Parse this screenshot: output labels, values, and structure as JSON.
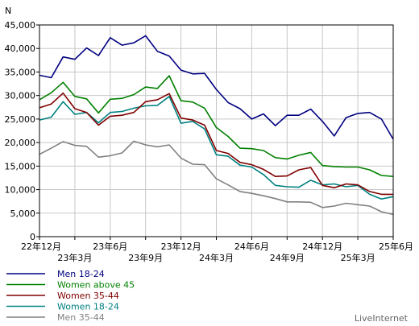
{
  "chart_data": {
    "type": "line",
    "ylabel": "N",
    "ylim": [
      0,
      45000
    ],
    "y_ticks": [
      "0",
      "5,000",
      "10,000",
      "15,000",
      "20,000",
      "25,000",
      "30,000",
      "35,000",
      "40,000",
      "45,000"
    ],
    "x_ticks": [
      {
        "label": "22年12月",
        "index": 0,
        "row": 1
      },
      {
        "label": "23年3月",
        "index": 3,
        "row": 2
      },
      {
        "label": "23年6月",
        "index": 6,
        "row": 1
      },
      {
        "label": "23年9月",
        "index": 9,
        "row": 2
      },
      {
        "label": "23年12月",
        "index": 12,
        "row": 1
      },
      {
        "label": "24年3月",
        "index": 15,
        "row": 2
      },
      {
        "label": "24年6月",
        "index": 18,
        "row": 1
      },
      {
        "label": "24年9月",
        "index": 21,
        "row": 2
      },
      {
        "label": "24年12月",
        "index": 24,
        "row": 1
      },
      {
        "label": "25年3月",
        "index": 27,
        "row": 2
      },
      {
        "label": "25年6月",
        "index": 30,
        "row": 1
      }
    ],
    "x_count": 31,
    "grid": true,
    "series": [
      {
        "name": "Men 18-24",
        "color": "#000080",
        "values": [
          34300,
          33800,
          38200,
          37700,
          40100,
          38500,
          42300,
          40700,
          41200,
          42700,
          39400,
          38400,
          35400,
          34600,
          34700,
          31300,
          28500,
          27200,
          25000,
          26100,
          23600,
          25800,
          25800,
          27100,
          24500,
          21400,
          25300,
          26200,
          26400,
          25000,
          20700
        ]
      },
      {
        "name": "Women above 45",
        "color": "#008000",
        "values": [
          29100,
          30600,
          32800,
          29800,
          29300,
          26300,
          29200,
          29400,
          30200,
          31800,
          31500,
          34200,
          28900,
          28600,
          27300,
          23200,
          21300,
          18800,
          18700,
          18300,
          16800,
          16500,
          17300,
          17900,
          15100,
          14900,
          14800,
          14800,
          14200,
          13000,
          12800
        ]
      },
      {
        "name": "Women 35-44",
        "color": "#800000",
        "values": [
          27400,
          28200,
          30500,
          27200,
          26400,
          23700,
          25600,
          25800,
          26400,
          28700,
          29100,
          30400,
          25200,
          24800,
          23700,
          18300,
          17700,
          15800,
          15300,
          14300,
          12800,
          12900,
          14200,
          14700,
          10900,
          10400,
          11200,
          11000,
          9600,
          9000,
          9000
        ]
      },
      {
        "name": "Women 18-24",
        "color": "#008080",
        "values": [
          24800,
          25400,
          28700,
          26000,
          26400,
          24200,
          26400,
          26600,
          27300,
          27800,
          27900,
          29800,
          24100,
          24500,
          22900,
          17400,
          17100,
          15200,
          14800,
          13200,
          10900,
          10600,
          10500,
          12000,
          11000,
          11200,
          10600,
          10900,
          9000,
          8000,
          8500
        ]
      },
      {
        "name": "Men 35-44",
        "color": "#808080",
        "values": [
          17500,
          18800,
          20200,
          19400,
          19200,
          16900,
          17200,
          17800,
          20300,
          19500,
          19100,
          19500,
          16700,
          15400,
          15300,
          12300,
          11000,
          9600,
          9200,
          8700,
          8100,
          7400,
          7400,
          7300,
          6200,
          6500,
          7100,
          6800,
          6500,
          5300,
          4700
        ]
      }
    ]
  },
  "brand": "LiveInternet"
}
